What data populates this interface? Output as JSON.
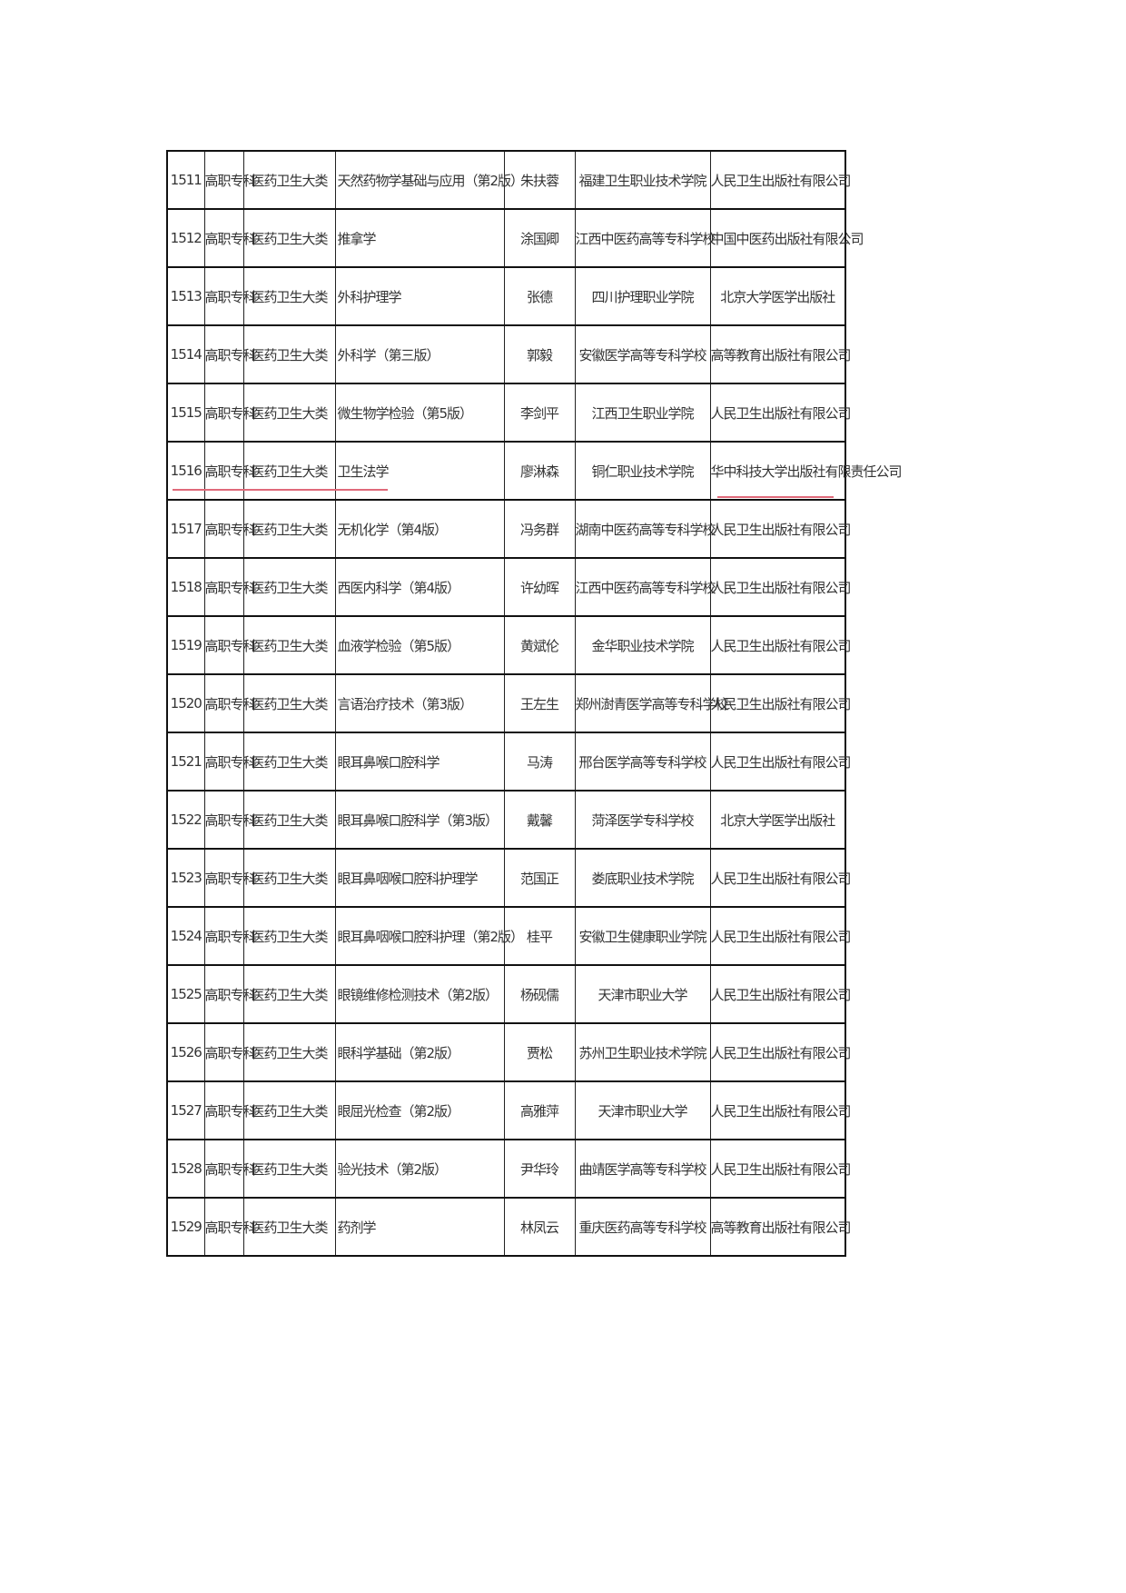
{
  "table": {
    "rows": [
      [
        "1511",
        "高职专科",
        "医药卫生大类",
        "天然药物学基础与应用（第2版）",
        "朱扶蓉",
        "福建卫生职业技术学院",
        "人民卫生出版社有限公司"
      ],
      [
        "1512",
        "高职专科",
        "医药卫生大类",
        "推拿学",
        "涂国卿",
        "江西中医药高等专科学校",
        "中国中医药出版社有限公司"
      ],
      [
        "1513",
        "高职专科",
        "医药卫生大类",
        "外科护理学",
        "张德",
        "四川护理职业学院",
        "北京大学医学出版社"
      ],
      [
        "1514",
        "高职专科",
        "医药卫生大类",
        "外科学（第三版）",
        "郭毅",
        "安徽医学高等专科学校",
        "高等教育出版社有限公司"
      ],
      [
        "1515",
        "高职专科",
        "医药卫生大类",
        "微生物学检验（第5版）",
        "李剑平",
        "江西卫生职业学院",
        "人民卫生出版社有限公司"
      ],
      [
        "1516",
        "高职专科",
        "医药卫生大类",
        "卫生法学",
        "廖淋森",
        "铜仁职业技术学院",
        "华中科技大学出版社有限责任公司"
      ],
      [
        "1517",
        "高职专科",
        "医药卫生大类",
        "无机化学（第4版）",
        "冯务群",
        "湖南中医药高等专科学校",
        "人民卫生出版社有限公司"
      ],
      [
        "1518",
        "高职专科",
        "医药卫生大类",
        "西医内科学（第4版）",
        "许幼晖",
        "江西中医药高等专科学校",
        "人民卫生出版社有限公司"
      ],
      [
        "1519",
        "高职专科",
        "医药卫生大类",
        "血液学检验（第5版）",
        "黄斌伦",
        "金华职业技术学院",
        "人民卫生出版社有限公司"
      ],
      [
        "1520",
        "高职专科",
        "医药卫生大类",
        "言语治疗技术（第3版）",
        "王左生",
        "郑州澍青医学高等专科学校",
        "人民卫生出版社有限公司"
      ],
      [
        "1521",
        "高职专科",
        "医药卫生大类",
        "眼耳鼻喉口腔科学",
        "马涛",
        "邢台医学高等专科学校",
        "人民卫生出版社有限公司"
      ],
      [
        "1522",
        "高职专科",
        "医药卫生大类",
        "眼耳鼻喉口腔科学（第3版）",
        "戴馨",
        "菏泽医学专科学校",
        "北京大学医学出版社"
      ],
      [
        "1523",
        "高职专科",
        "医药卫生大类",
        "眼耳鼻咽喉口腔科护理学",
        "范国正",
        "娄底职业技术学院",
        "人民卫生出版社有限公司"
      ],
      [
        "1524",
        "高职专科",
        "医药卫生大类",
        "眼耳鼻咽喉口腔科护理（第2版）",
        "桂平",
        "安徽卫生健康职业学院",
        "人民卫生出版社有限公司"
      ],
      [
        "1525",
        "高职专科",
        "医药卫生大类",
        "眼镜维修检测技术（第2版）",
        "杨砚儒",
        "天津市职业大学",
        "人民卫生出版社有限公司"
      ],
      [
        "1526",
        "高职专科",
        "医药卫生大类",
        "眼科学基础（第2版）",
        "贾松",
        "苏州卫生职业技术学院",
        "人民卫生出版社有限公司"
      ],
      [
        "1527",
        "高职专科",
        "医药卫生大类",
        "眼屈光检查（第2版）",
        "高雅萍",
        "天津市职业大学",
        "人民卫生出版社有限公司"
      ],
      [
        "1528",
        "高职专科",
        "医药卫生大类",
        "验光技术（第2版）",
        "尹华玲",
        "曲靖医学高等专科学校",
        "人民卫生出版社有限公司"
      ],
      [
        "1529",
        "高职专科",
        "医药卫生大类",
        "药剂学",
        "林凤云",
        "重庆医药高等专科学校",
        "高等教育出版社有限公司"
      ]
    ]
  },
  "highlight": {
    "row": "1516",
    "color": "#e06a7a"
  }
}
